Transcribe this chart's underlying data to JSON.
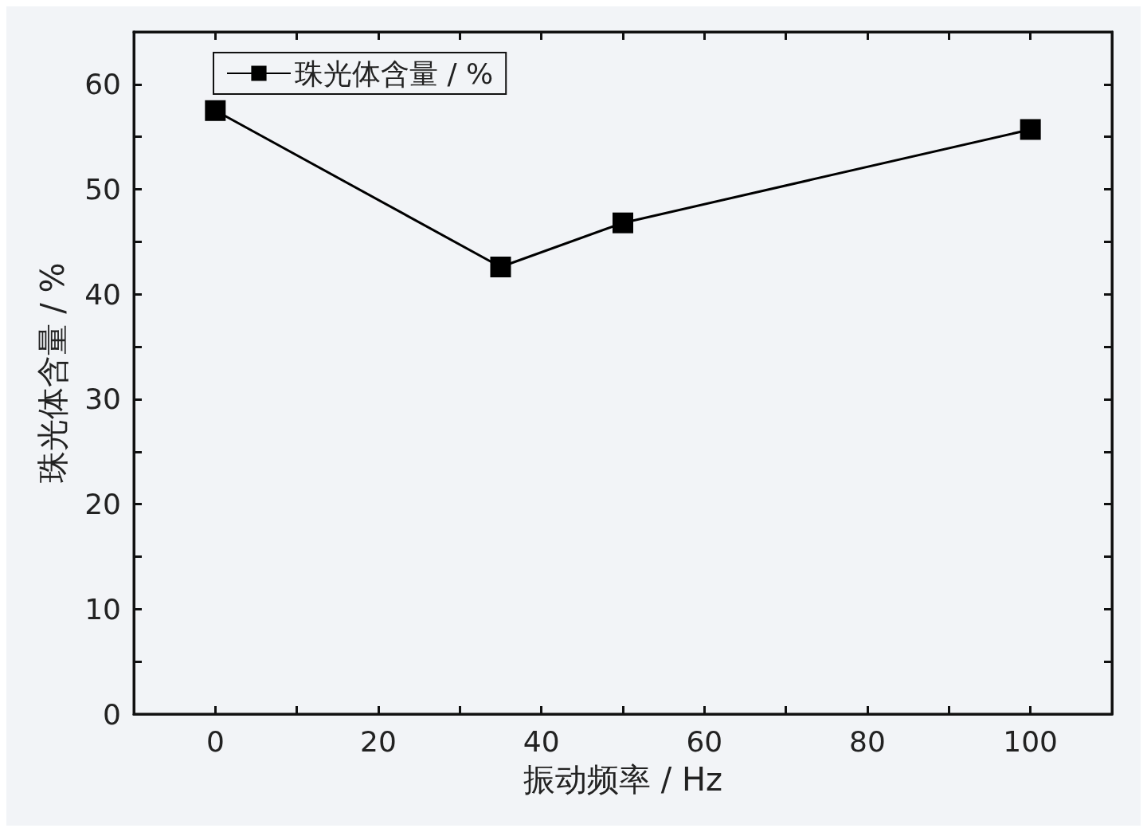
{
  "chart_data": {
    "type": "line",
    "xlabel": "振动频率 / Hz",
    "ylabel": "珠光体含量 / %",
    "x": [
      0,
      35,
      50,
      100
    ],
    "series": [
      {
        "name": "珠光体含量 / %",
        "color": "#000000",
        "values": [
          57.5,
          42.6,
          46.8,
          55.7
        ]
      }
    ],
    "xlim": [
      -10,
      110
    ],
    "xticks": [
      0,
      {
        "value": 10,
        "label": null
      },
      20,
      {
        "value": 30,
        "label": null
      },
      40,
      {
        "value": 50,
        "label": null
      },
      60,
      {
        "value": 70,
        "label": null
      },
      80,
      {
        "value": 90,
        "label": null
      },
      100
    ],
    "ylim": [
      0,
      65
    ],
    "yticks": [
      0,
      {
        "value": 5,
        "label": null
      },
      10,
      {
        "value": 15,
        "label": null
      },
      20,
      {
        "value": 25,
        "label": null
      },
      30,
      {
        "value": 35,
        "label": null
      },
      40,
      {
        "value": 45,
        "label": null
      },
      50,
      {
        "value": 55,
        "label": null
      },
      60
    ],
    "grid": false,
    "legend": "top left",
    "marker": "square",
    "line_style": "solid"
  }
}
